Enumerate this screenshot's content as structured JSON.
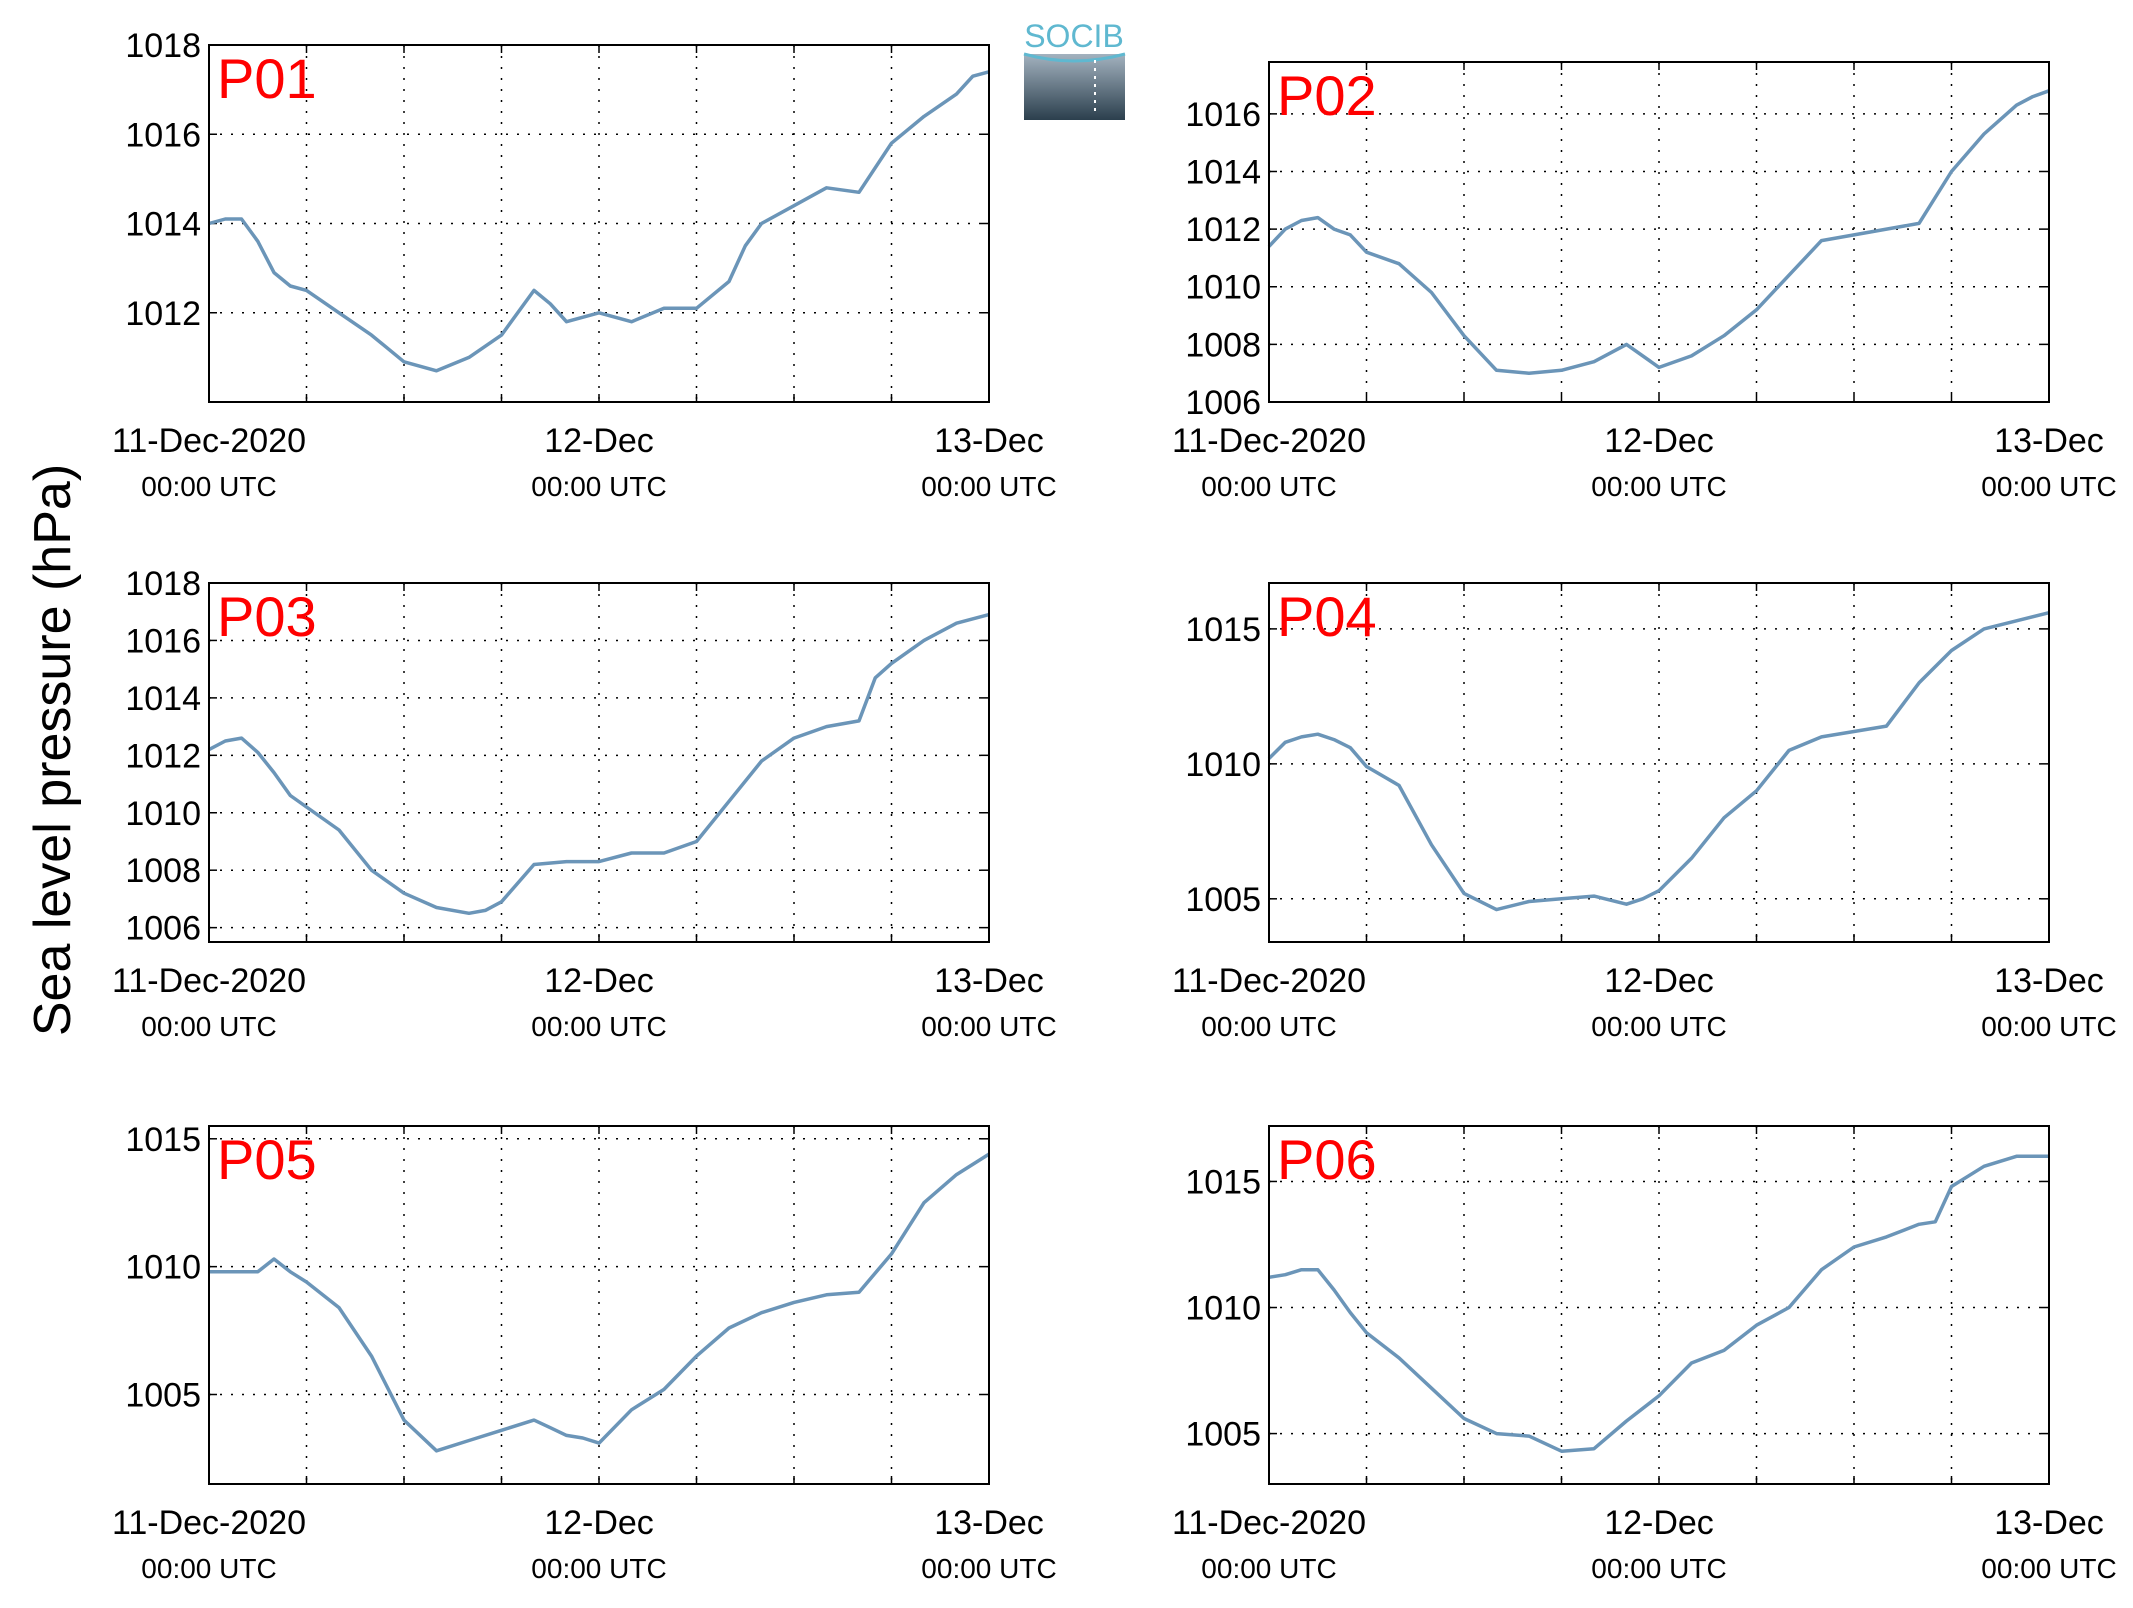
{
  "figure": {
    "ylabel": "Sea level pressure (hPa)",
    "logo_text": "SOCIB",
    "series_color": "#6b95b8",
    "label_color": "#ff0000",
    "grid": "dotted"
  },
  "chart_data": [
    {
      "type": "line",
      "title": "P01",
      "ylim": [
        1010,
        1018
      ],
      "yticks": [
        1012,
        1014,
        1016,
        1018
      ],
      "xticks": [
        {
          "label": "11-Dec-2020",
          "sub": "00:00 UTC",
          "hour": 0
        },
        {
          "label": "12-Dec",
          "sub": "00:00 UTC",
          "hour": 24
        },
        {
          "label": "13-Dec",
          "sub": "00:00 UTC",
          "hour": 48
        }
      ],
      "series": [
        {
          "x_hours": [
            0,
            1,
            2,
            3,
            4,
            5,
            6,
            8,
            10,
            12,
            14,
            16,
            18,
            20,
            21,
            22,
            24,
            26,
            28,
            30,
            32,
            33,
            34,
            36,
            38,
            40,
            42,
            44,
            46,
            47,
            48
          ],
          "values": [
            1014.0,
            1014.1,
            1014.1,
            1013.6,
            1012.9,
            1012.6,
            1012.5,
            1012.0,
            1011.5,
            1010.9,
            1010.7,
            1011.0,
            1011.5,
            1012.5,
            1012.2,
            1011.8,
            1012.0,
            1011.8,
            1012.1,
            1012.1,
            1012.7,
            1013.5,
            1014.0,
            1014.4,
            1014.8,
            1014.7,
            1015.8,
            1016.4,
            1016.9,
            1017.3,
            1017.4
          ]
        }
      ]
    },
    {
      "type": "line",
      "title": "P02",
      "ylim": [
        1006,
        1017.8
      ],
      "yticks": [
        1006,
        1008,
        1010,
        1012,
        1014,
        1016
      ],
      "xticks": [
        {
          "label": "11-Dec-2020",
          "sub": "00:00 UTC",
          "hour": 0
        },
        {
          "label": "12-Dec",
          "sub": "00:00 UTC",
          "hour": 24
        },
        {
          "label": "13-Dec",
          "sub": "00:00 UTC",
          "hour": 48
        }
      ],
      "series": [
        {
          "x_hours": [
            0,
            1,
            2,
            3,
            4,
            5,
            6,
            8,
            10,
            12,
            14,
            16,
            18,
            20,
            22,
            24,
            26,
            28,
            30,
            32,
            34,
            36,
            38,
            40,
            42,
            44,
            46,
            47,
            48
          ],
          "values": [
            1011.4,
            1012.0,
            1012.3,
            1012.4,
            1012.0,
            1011.8,
            1011.2,
            1010.8,
            1009.8,
            1008.3,
            1007.1,
            1007.0,
            1007.1,
            1007.4,
            1008.0,
            1007.2,
            1007.6,
            1008.3,
            1009.2,
            1010.4,
            1011.6,
            1011.8,
            1012.0,
            1012.2,
            1014.0,
            1015.3,
            1016.3,
            1016.6,
            1016.8
          ]
        }
      ]
    },
    {
      "type": "line",
      "title": "P03",
      "ylim": [
        1005.5,
        1018
      ],
      "yticks": [
        1006,
        1008,
        1010,
        1012,
        1014,
        1016,
        1018
      ],
      "xticks": [
        {
          "label": "11-Dec-2020",
          "sub": "00:00 UTC",
          "hour": 0
        },
        {
          "label": "12-Dec",
          "sub": "00:00 UTC",
          "hour": 24
        },
        {
          "label": "13-Dec",
          "sub": "00:00 UTC",
          "hour": 48
        }
      ],
      "series": [
        {
          "x_hours": [
            0,
            1,
            2,
            3,
            4,
            5,
            6,
            8,
            10,
            12,
            14,
            16,
            17,
            18,
            20,
            22,
            24,
            26,
            28,
            30,
            32,
            34,
            36,
            38,
            40,
            41,
            42,
            44,
            46,
            48
          ],
          "values": [
            1012.2,
            1012.5,
            1012.6,
            1012.1,
            1011.4,
            1010.6,
            1010.2,
            1009.4,
            1008.0,
            1007.2,
            1006.7,
            1006.5,
            1006.6,
            1006.9,
            1008.2,
            1008.3,
            1008.3,
            1008.6,
            1008.6,
            1009.0,
            1010.4,
            1011.8,
            1012.6,
            1013.0,
            1013.2,
            1014.7,
            1015.2,
            1016.0,
            1016.6,
            1016.9
          ]
        }
      ]
    },
    {
      "type": "line",
      "title": "P04",
      "ylim": [
        1003.4,
        1016.7
      ],
      "yticks": [
        1005,
        1010,
        1015
      ],
      "xticks": [
        {
          "label": "11-Dec-2020",
          "sub": "00:00 UTC",
          "hour": 0
        },
        {
          "label": "12-Dec",
          "sub": "00:00 UTC",
          "hour": 24
        },
        {
          "label": "13-Dec",
          "sub": "00:00 UTC",
          "hour": 48
        }
      ],
      "series": [
        {
          "x_hours": [
            0,
            1,
            2,
            3,
            4,
            5,
            6,
            8,
            10,
            12,
            14,
            16,
            18,
            20,
            22,
            23,
            24,
            26,
            28,
            30,
            32,
            34,
            36,
            38,
            40,
            42,
            44,
            46,
            48
          ],
          "values": [
            1010.2,
            1010.8,
            1011.0,
            1011.1,
            1010.9,
            1010.6,
            1009.9,
            1009.2,
            1007.0,
            1005.2,
            1004.6,
            1004.9,
            1005.0,
            1005.1,
            1004.8,
            1005.0,
            1005.3,
            1006.5,
            1008.0,
            1009.0,
            1010.5,
            1011.0,
            1011.2,
            1011.4,
            1013.0,
            1014.2,
            1015.0,
            1015.3,
            1015.6
          ]
        }
      ]
    },
    {
      "type": "line",
      "title": "P05",
      "ylim": [
        1001.5,
        1015.5
      ],
      "yticks": [
        1005,
        1010,
        1015
      ],
      "xticks": [
        {
          "label": "11-Dec-2020",
          "sub": "00:00 UTC",
          "hour": 0
        },
        {
          "label": "12-Dec",
          "sub": "00:00 UTC",
          "hour": 24
        },
        {
          "label": "13-Dec",
          "sub": "00:00 UTC",
          "hour": 48
        }
      ],
      "series": [
        {
          "x_hours": [
            0,
            1,
            2,
            3,
            4,
            5,
            6,
            8,
            10,
            12,
            14,
            16,
            18,
            20,
            21,
            22,
            23,
            24,
            26,
            28,
            30,
            32,
            34,
            36,
            38,
            40,
            42,
            44,
            46,
            48
          ],
          "values": [
            1009.8,
            1009.8,
            1009.8,
            1009.8,
            1010.3,
            1009.8,
            1009.4,
            1008.4,
            1006.5,
            1004.0,
            1002.8,
            1003.2,
            1003.6,
            1004.0,
            1003.7,
            1003.4,
            1003.3,
            1003.1,
            1004.4,
            1005.2,
            1006.5,
            1007.6,
            1008.2,
            1008.6,
            1008.9,
            1009.0,
            1010.5,
            1012.5,
            1013.6,
            1014.4
          ]
        }
      ]
    },
    {
      "type": "line",
      "title": "P06",
      "ylim": [
        1003,
        1017.2
      ],
      "yticks": [
        1005,
        1010,
        1015
      ],
      "xticks": [
        {
          "label": "11-Dec-2020",
          "sub": "00:00 UTC",
          "hour": 0
        },
        {
          "label": "12-Dec",
          "sub": "00:00 UTC",
          "hour": 24
        },
        {
          "label": "13-Dec",
          "sub": "00:00 UTC",
          "hour": 48
        }
      ],
      "series": [
        {
          "x_hours": [
            0,
            1,
            2,
            3,
            4,
            5,
            6,
            8,
            10,
            12,
            14,
            16,
            18,
            20,
            22,
            24,
            26,
            28,
            30,
            32,
            34,
            36,
            38,
            40,
            41,
            42,
            44,
            46,
            48
          ],
          "values": [
            1011.2,
            1011.3,
            1011.5,
            1011.5,
            1010.7,
            1009.8,
            1009.0,
            1008.0,
            1006.8,
            1005.6,
            1005.0,
            1004.9,
            1004.3,
            1004.4,
            1005.5,
            1006.5,
            1007.8,
            1008.3,
            1009.3,
            1010.0,
            1011.5,
            1012.4,
            1012.8,
            1013.3,
            1013.4,
            1014.8,
            1015.6,
            1016.0,
            1016.0
          ]
        }
      ]
    }
  ]
}
